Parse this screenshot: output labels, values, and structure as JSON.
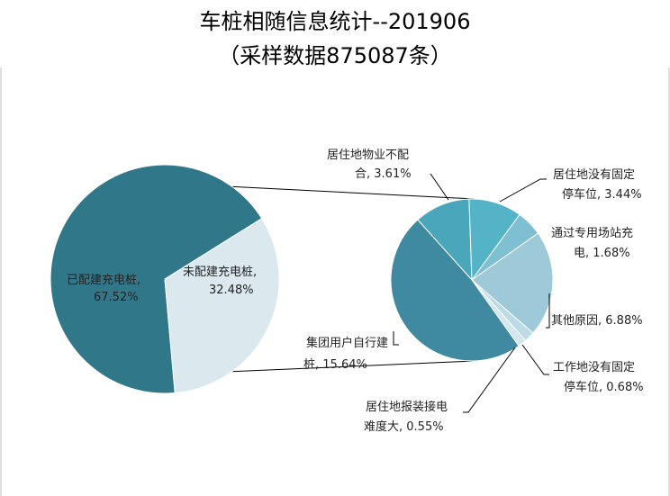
{
  "title_line1": "车桩相随信息统计--201906",
  "title_line2": "（采样数据875087条）",
  "chart_data": {
    "type": "pie",
    "charts": [
      {
        "name": "",
        "slices": [
          {
            "label": "已配建充电桩",
            "value": 67.52,
            "display": "67.52%",
            "color": "#31778a"
          },
          {
            "label": "未配建充电桩",
            "value": 32.48,
            "display": "32.48%",
            "color": "#dbe9ef"
          }
        ]
      },
      {
        "name": "",
        "slices": [
          {
            "label": "居住地物业不配合",
            "value": 3.61,
            "display": "3.61%",
            "color": "#4aa6bb"
          },
          {
            "label": "居住地没有固定停车位",
            "value": 3.44,
            "display": "3.44%",
            "color": "#55b3c8"
          },
          {
            "label": "通过专用场站充电",
            "value": 1.68,
            "display": "1.68%",
            "color": "#7ec0d2"
          },
          {
            "label": "其他原因",
            "value": 6.88,
            "display": "6.88%",
            "color": "#9dc9d9"
          },
          {
            "label": "工作地没有固定停车位",
            "value": 0.68,
            "display": "0.68%",
            "color": "#bcdbe6"
          },
          {
            "label": "居住地报装接电难度大",
            "value": 0.55,
            "display": "0.55%",
            "color": "#d3e7ee"
          },
          {
            "label": "集团用户自行建桩",
            "value": 15.64,
            "display": "15.64%",
            "color": "#3f8aa0"
          }
        ]
      }
    ]
  },
  "labels": {
    "left_a_1": "已配建充电桩,",
    "left_a_2": "67.52%",
    "left_b_1": "未配建充电桩,",
    "left_b_2": "32.48%",
    "wy_1": "居住地物业不配",
    "wy_2": "合, 3.61%",
    "gd_1": "居住地没有固定",
    "gd_2": "停车位, 3.44%",
    "zy_1": "通过专用场站充",
    "zy_2": "电, 1.68%",
    "qt": "其他原因, 6.88%",
    "gz_1": "工作地没有固定",
    "gz_2": "停车位, 0.68%",
    "jd_1": "居住地报装接电",
    "jd_2": "难度大, 0.55%",
    "jt_1": "集团用户自行建",
    "jt_2": "桩, 15.64%"
  }
}
